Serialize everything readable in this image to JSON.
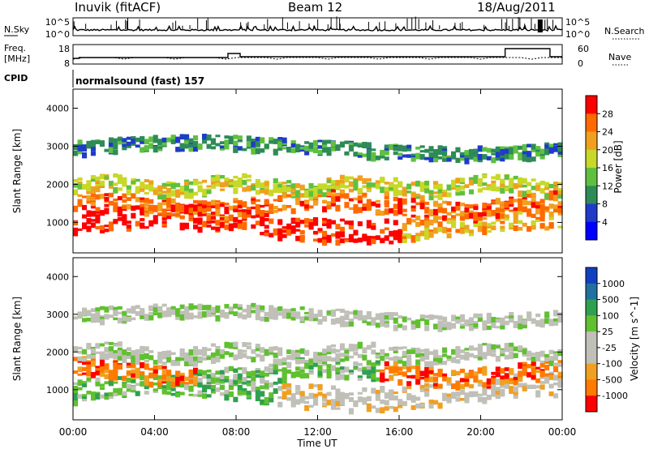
{
  "header": {
    "station": "Inuvik (fitACF)",
    "beam": "Beam 12",
    "date": "18/Aug/2011"
  },
  "summary": {
    "left_labels": [
      "N.Sky",
      "Freq.",
      "[MHz]",
      "CPID"
    ],
    "right_labels": [
      "N.Search",
      "Nave"
    ],
    "noise_ticks": [
      "10^5",
      "10^0"
    ],
    "freq_ticks": [
      "18",
      "8"
    ],
    "nave_ticks": [
      "60",
      "0"
    ],
    "cpid_text": "normalsound (fast) 157"
  },
  "chart_data": [
    {
      "type": "heatmap",
      "title": "",
      "xlabel": "Time UT",
      "ylabel": "Slant Range [km]",
      "x_ticks": [
        "00:00",
        "04:00",
        "08:00",
        "12:00",
        "16:00",
        "20:00",
        "00:00"
      ],
      "y_ticks": [
        "1000",
        "2000",
        "3000",
        "4000"
      ],
      "ylim": [
        200,
        4500
      ],
      "colorbar": {
        "label": "Power [dB]",
        "ticks": [
          "4",
          "8",
          "12",
          "16",
          "20",
          "24",
          "28"
        ],
        "colors": [
          "#0000ff",
          "#1e3cc8",
          "#2e8b57",
          "#5fc040",
          "#c8d828",
          "#f0a020",
          "#ff6a00",
          "#ff0000"
        ]
      }
    },
    {
      "type": "heatmap",
      "title": "",
      "xlabel": "Time UT",
      "ylabel": "Slant Range [km]",
      "x_ticks": [
        "00:00",
        "04:00",
        "08:00",
        "12:00",
        "16:00",
        "20:00",
        "00:00"
      ],
      "y_ticks": [
        "1000",
        "2000",
        "3000",
        "4000"
      ],
      "ylim": [
        200,
        4500
      ],
      "colorbar": {
        "label": "Velocity [m s^-1]",
        "ticks": [
          "1000",
          "500",
          "100",
          "25",
          "-25",
          "-100",
          "-500",
          "-1000"
        ],
        "colors": [
          "#1040c0",
          "#2070a0",
          "#30a050",
          "#60c030",
          "#c0c0b8",
          "#c0c0b8",
          "#f0a020",
          "#ff7a00",
          "#ff0000"
        ]
      }
    }
  ]
}
